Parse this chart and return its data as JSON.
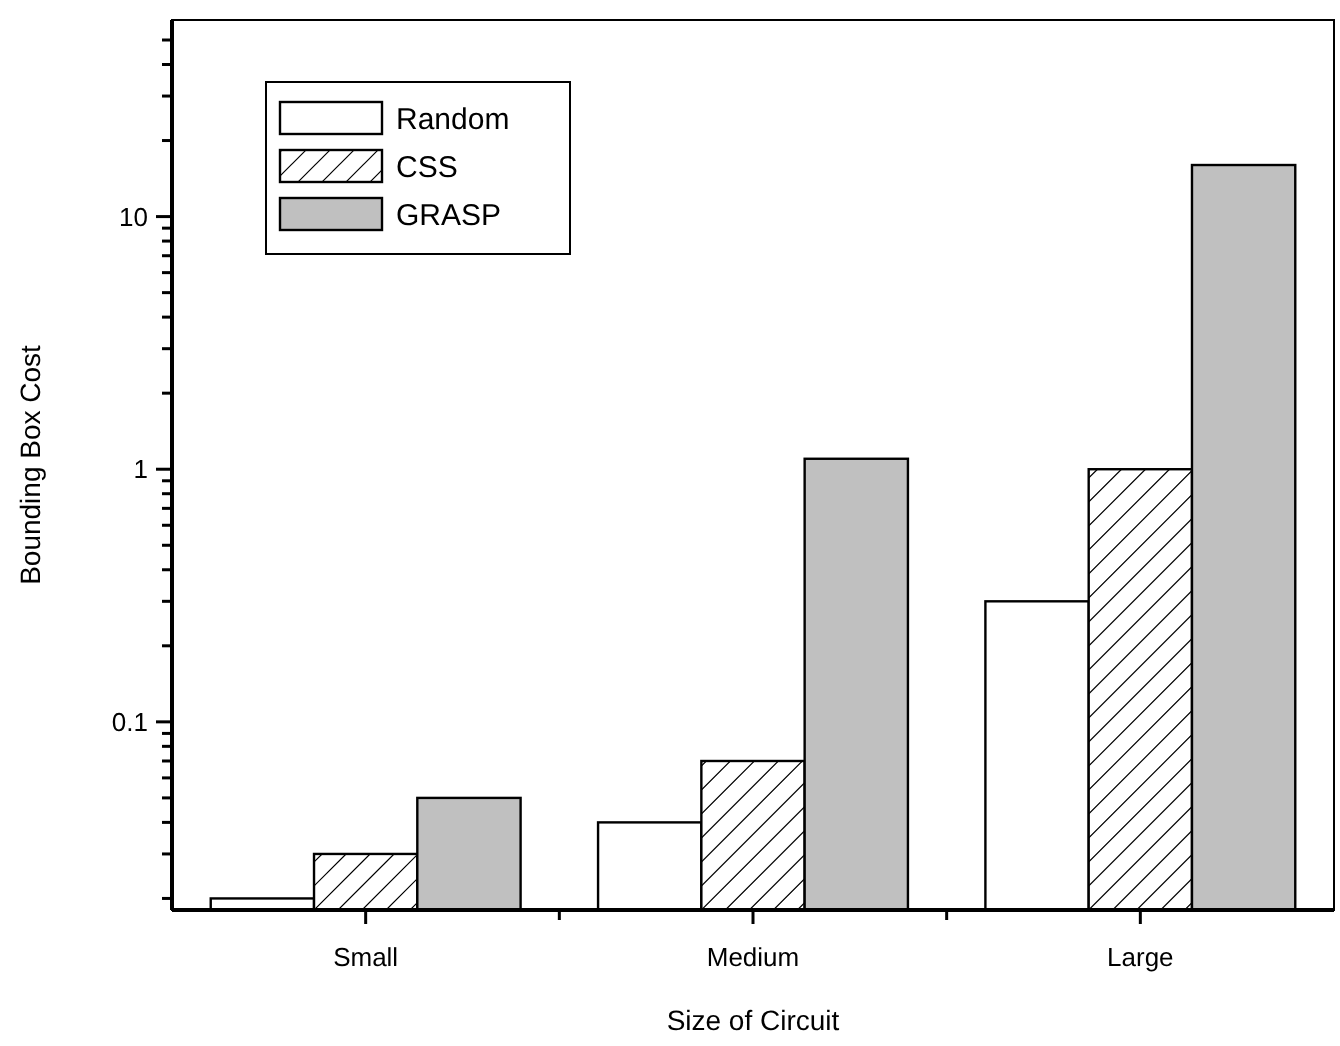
{
  "chart_data": {
    "type": "bar",
    "xlabel": "Size of Circuit",
    "ylabel": "Bounding Box Cost",
    "categories": [
      "Small",
      "Medium",
      "Large"
    ],
    "series": [
      {
        "name": "Random",
        "color": "#ffffff",
        "values": [
          0.02,
          0.04,
          0.3
        ]
      },
      {
        "name": "CSS",
        "color": "#ffffff",
        "values": [
          0.03,
          0.07,
          1
        ]
      },
      {
        "name": "GRASP",
        "color": "#c0c0c0",
        "values": [
          0.05,
          1.1,
          16
        ]
      }
    ],
    "log": "y",
    "ylim": [
      0.018,
      60
    ],
    "yticks": [
      {
        "value": 0.02,
        "label": null
      },
      {
        "value": 0.03,
        "label": null
      },
      {
        "value": 0.04,
        "label": null
      },
      {
        "value": 0.05,
        "label": null
      },
      {
        "value": 0.06,
        "label": null
      },
      {
        "value": 0.07,
        "label": null
      },
      {
        "value": 0.08,
        "label": null
      },
      {
        "value": 0.09,
        "label": null
      },
      0.1,
      {
        "value": 0.2,
        "label": null
      },
      {
        "value": 0.3,
        "label": null
      },
      {
        "value": 0.4,
        "label": null
      },
      {
        "value": 0.5,
        "label": null
      },
      {
        "value": 0.6,
        "label": null
      },
      {
        "value": 0.7,
        "label": null
      },
      {
        "value": 0.8,
        "label": null
      },
      {
        "value": 0.9,
        "label": null
      },
      1,
      {
        "value": 2,
        "label": null
      },
      {
        "value": 3,
        "label": null
      },
      {
        "value": 4,
        "label": null
      },
      {
        "value": 5,
        "label": null
      },
      {
        "value": 6,
        "label": null
      },
      {
        "value": 7,
        "label": null
      },
      {
        "value": 8,
        "label": null
      },
      {
        "value": 9,
        "label": null
      },
      10,
      {
        "value": 20,
        "label": null
      },
      {
        "value": 30,
        "label": null
      },
      {
        "value": 40,
        "label": null
      },
      {
        "value": 50,
        "label": null
      }
    ],
    "legend": "top left",
    "grid": false
  }
}
